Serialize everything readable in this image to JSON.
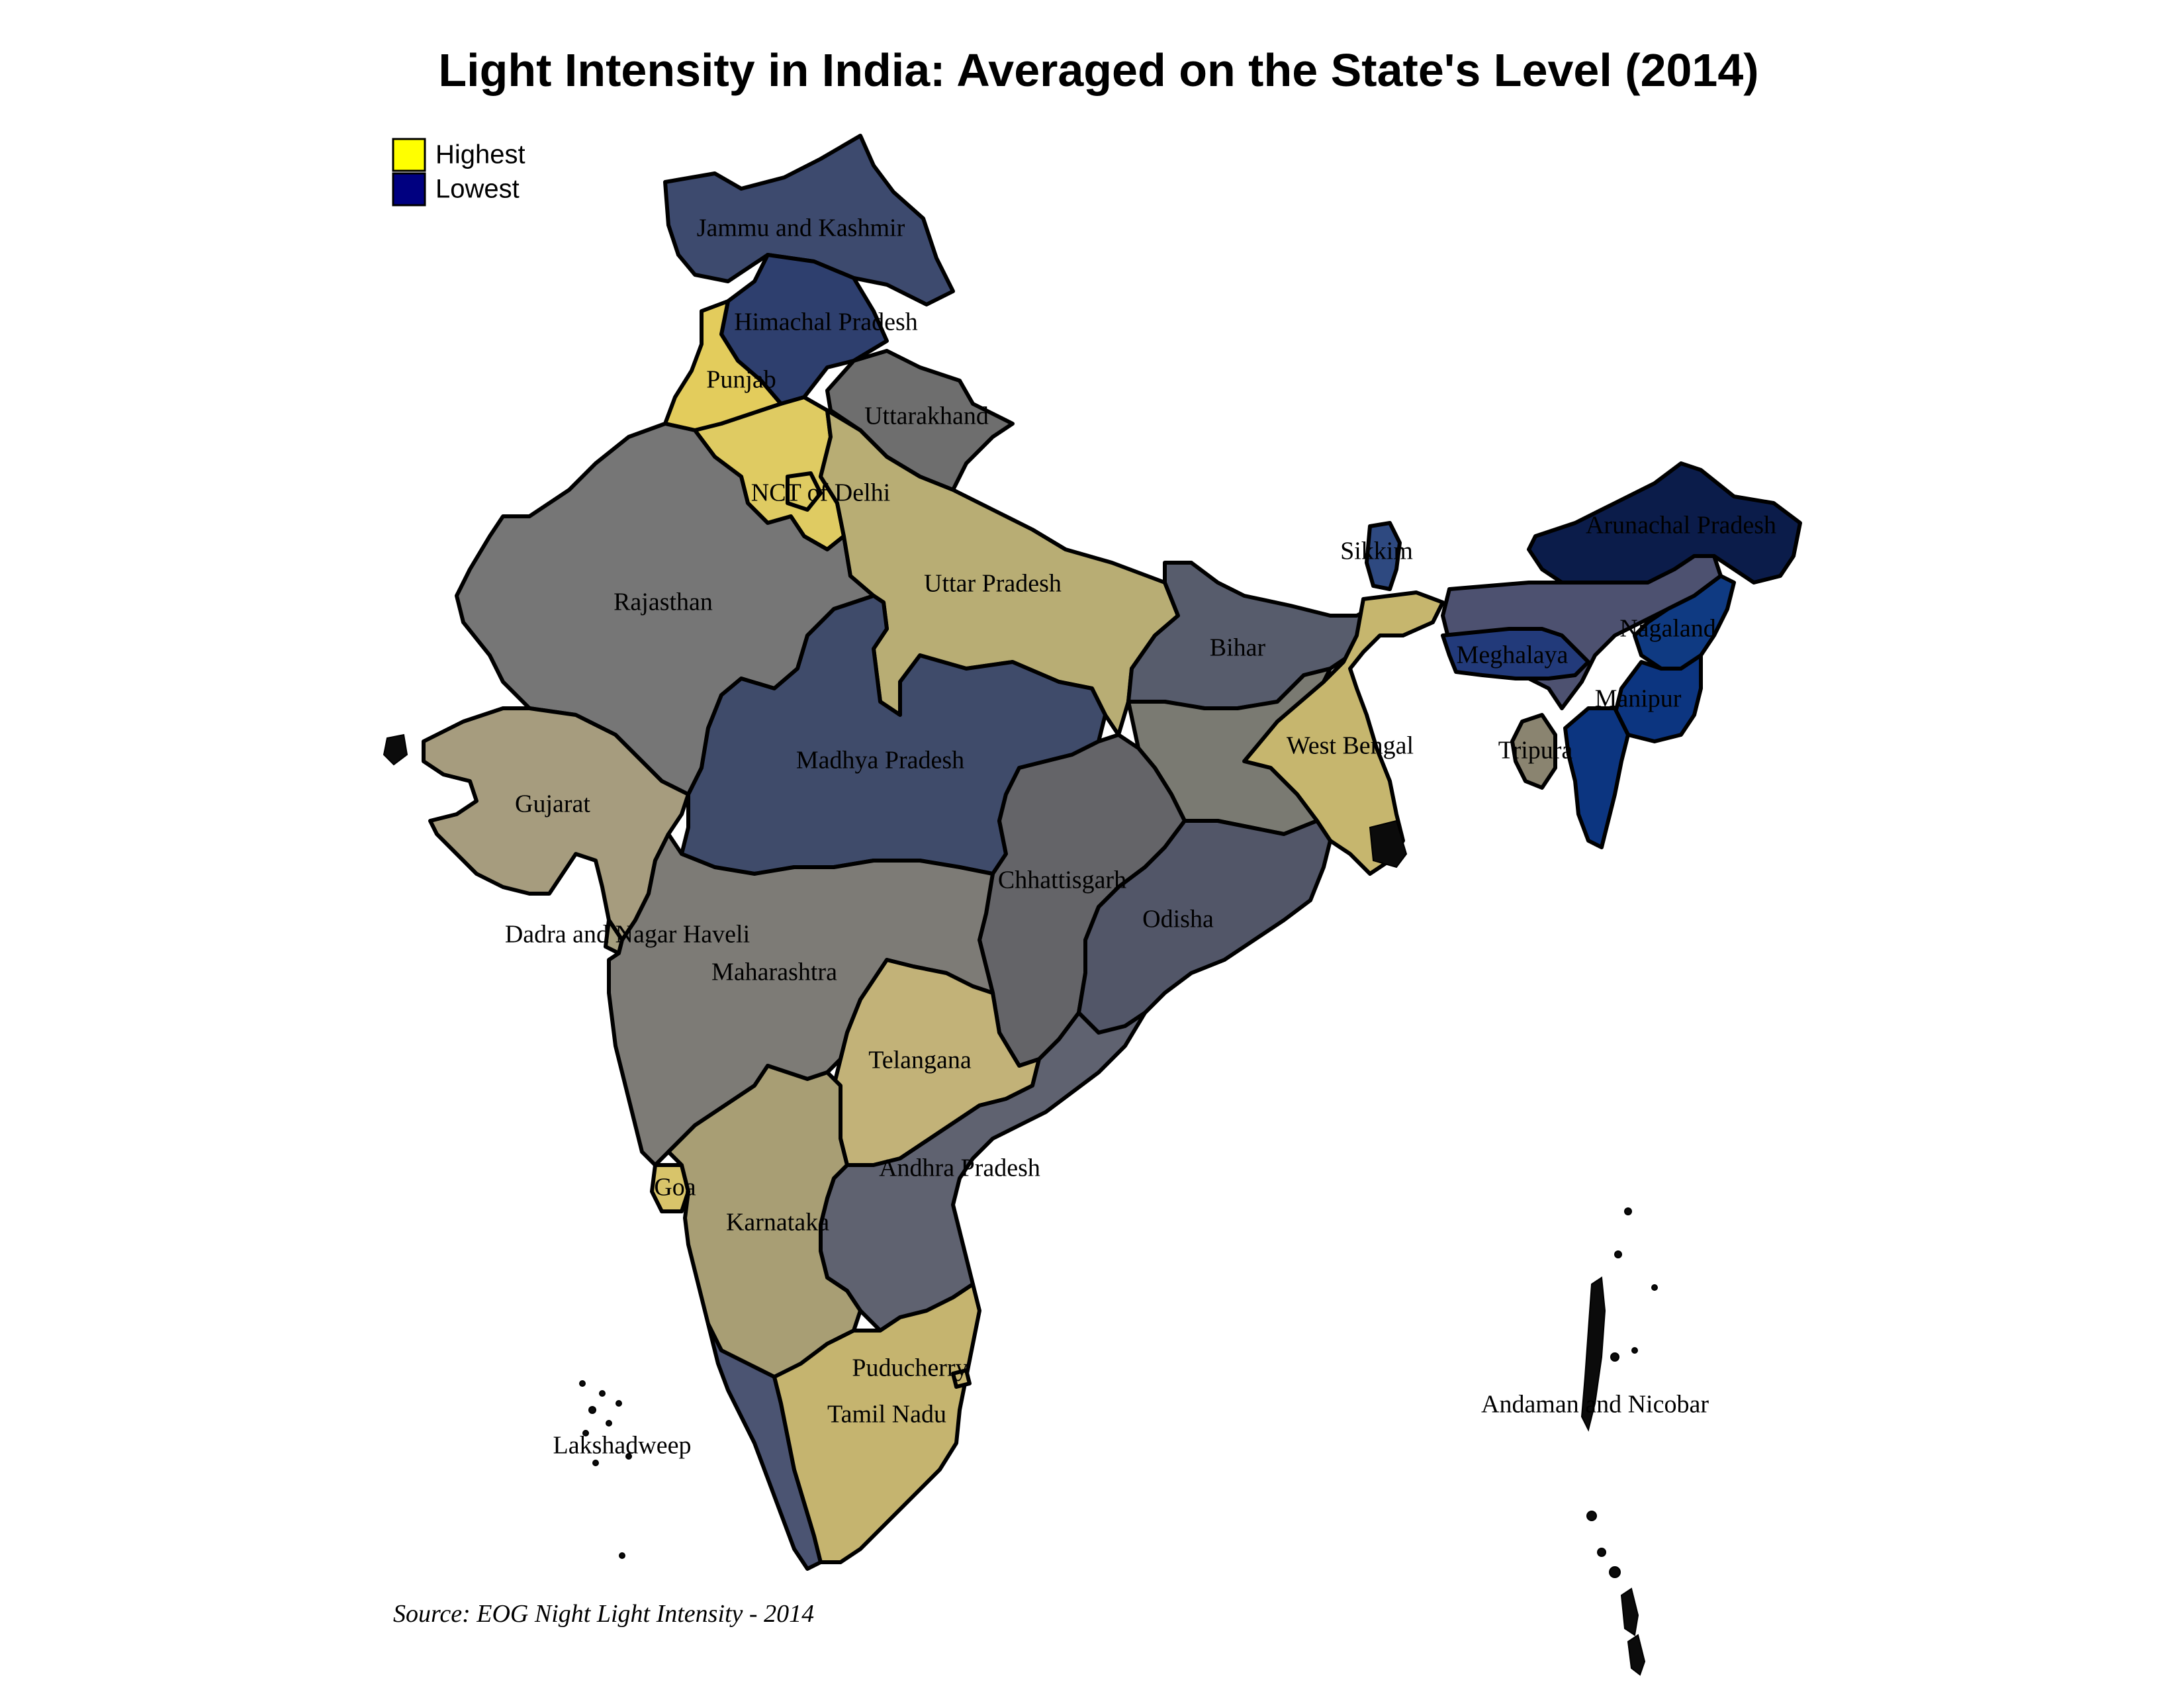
{
  "title": "Light Intensity in India: Averaged on the State's Level (2014)",
  "legend": {
    "high": {
      "label": "Highest",
      "color": "#ffff00"
    },
    "low": {
      "label": "Lowest",
      "color": "#000080"
    }
  },
  "source": "Source: EOG Night Light Intensity - 2014",
  "states": {
    "jammu_kashmir": {
      "name": "Jammu and Kashmir",
      "color": "#3d4a6e"
    },
    "himachal": {
      "name": "Himachal Pradesh",
      "color": "#2e3f6e"
    },
    "punjab": {
      "name": "Punjab",
      "color": "#e3cc5c"
    },
    "uttarakhand": {
      "name": "Uttarakhand",
      "color": "#6e6e6e"
    },
    "delhi": {
      "name": "NCT of Delhi",
      "color": "#dfcb62"
    },
    "haryana": {
      "name": "",
      "color": "#dfcb62"
    },
    "rajasthan": {
      "name": "Rajasthan",
      "color": "#767676"
    },
    "uttar_pradesh": {
      "name": "Uttar Pradesh",
      "color": "#b8ad74"
    },
    "bihar": {
      "name": "Bihar",
      "color": "#575c6c"
    },
    "sikkim": {
      "name": "Sikkim",
      "color": "#2e4980"
    },
    "arunachal": {
      "name": "Arunachal Pradesh",
      "color": "#0b1c4a"
    },
    "assam": {
      "name": "",
      "color": "#4d5170"
    },
    "nagaland": {
      "name": "Nagaland",
      "color": "#0f3a82"
    },
    "meghalaya": {
      "name": "Meghalaya",
      "color": "#223a7a"
    },
    "manipur": {
      "name": "Manipur",
      "color": "#0c3580"
    },
    "mizoram": {
      "name": "",
      "color": "#0c3580"
    },
    "tripura": {
      "name": "Tripura",
      "color": "#8a8470"
    },
    "west_bengal": {
      "name": "West Bengal",
      "color": "#c6b66e"
    },
    "jharkhand": {
      "name": "",
      "color": "#7a7a72"
    },
    "gujarat": {
      "name": "Gujarat",
      "color": "#a69c7e"
    },
    "madhya_pradesh": {
      "name": "Madhya Pradesh",
      "color": "#3f4b6a"
    },
    "chhattisgarh": {
      "name": "Chhattisgarh",
      "color": "#646468"
    },
    "odisha": {
      "name": "Odisha",
      "color": "#525668"
    },
    "dadra": {
      "name": "Dadra and Nagar Haveli",
      "color": "#a59e7e"
    },
    "maharashtra": {
      "name": "Maharashtra",
      "color": "#7d7b76"
    },
    "telangana": {
      "name": "Telangana",
      "color": "#c2b278"
    },
    "andhra": {
      "name": "Andhra Pradesh",
      "color": "#5f6270"
    },
    "goa": {
      "name": "Goa",
      "color": "#d8c46a"
    },
    "karnataka": {
      "name": "Karnataka",
      "color": "#a89e74"
    },
    "puducherry": {
      "name": "Puducherry",
      "color": "#c8b672"
    },
    "tamil_nadu": {
      "name": "Tamil Nadu",
      "color": "#c5b46f"
    },
    "kerala": {
      "name": "",
      "color": "#4b5472"
    },
    "lakshadweep": {
      "name": "Lakshadweep",
      "color": "#0b0b0b"
    },
    "andaman": {
      "name": "Andaman and Nicobar",
      "color": "#0b0b0b"
    }
  }
}
